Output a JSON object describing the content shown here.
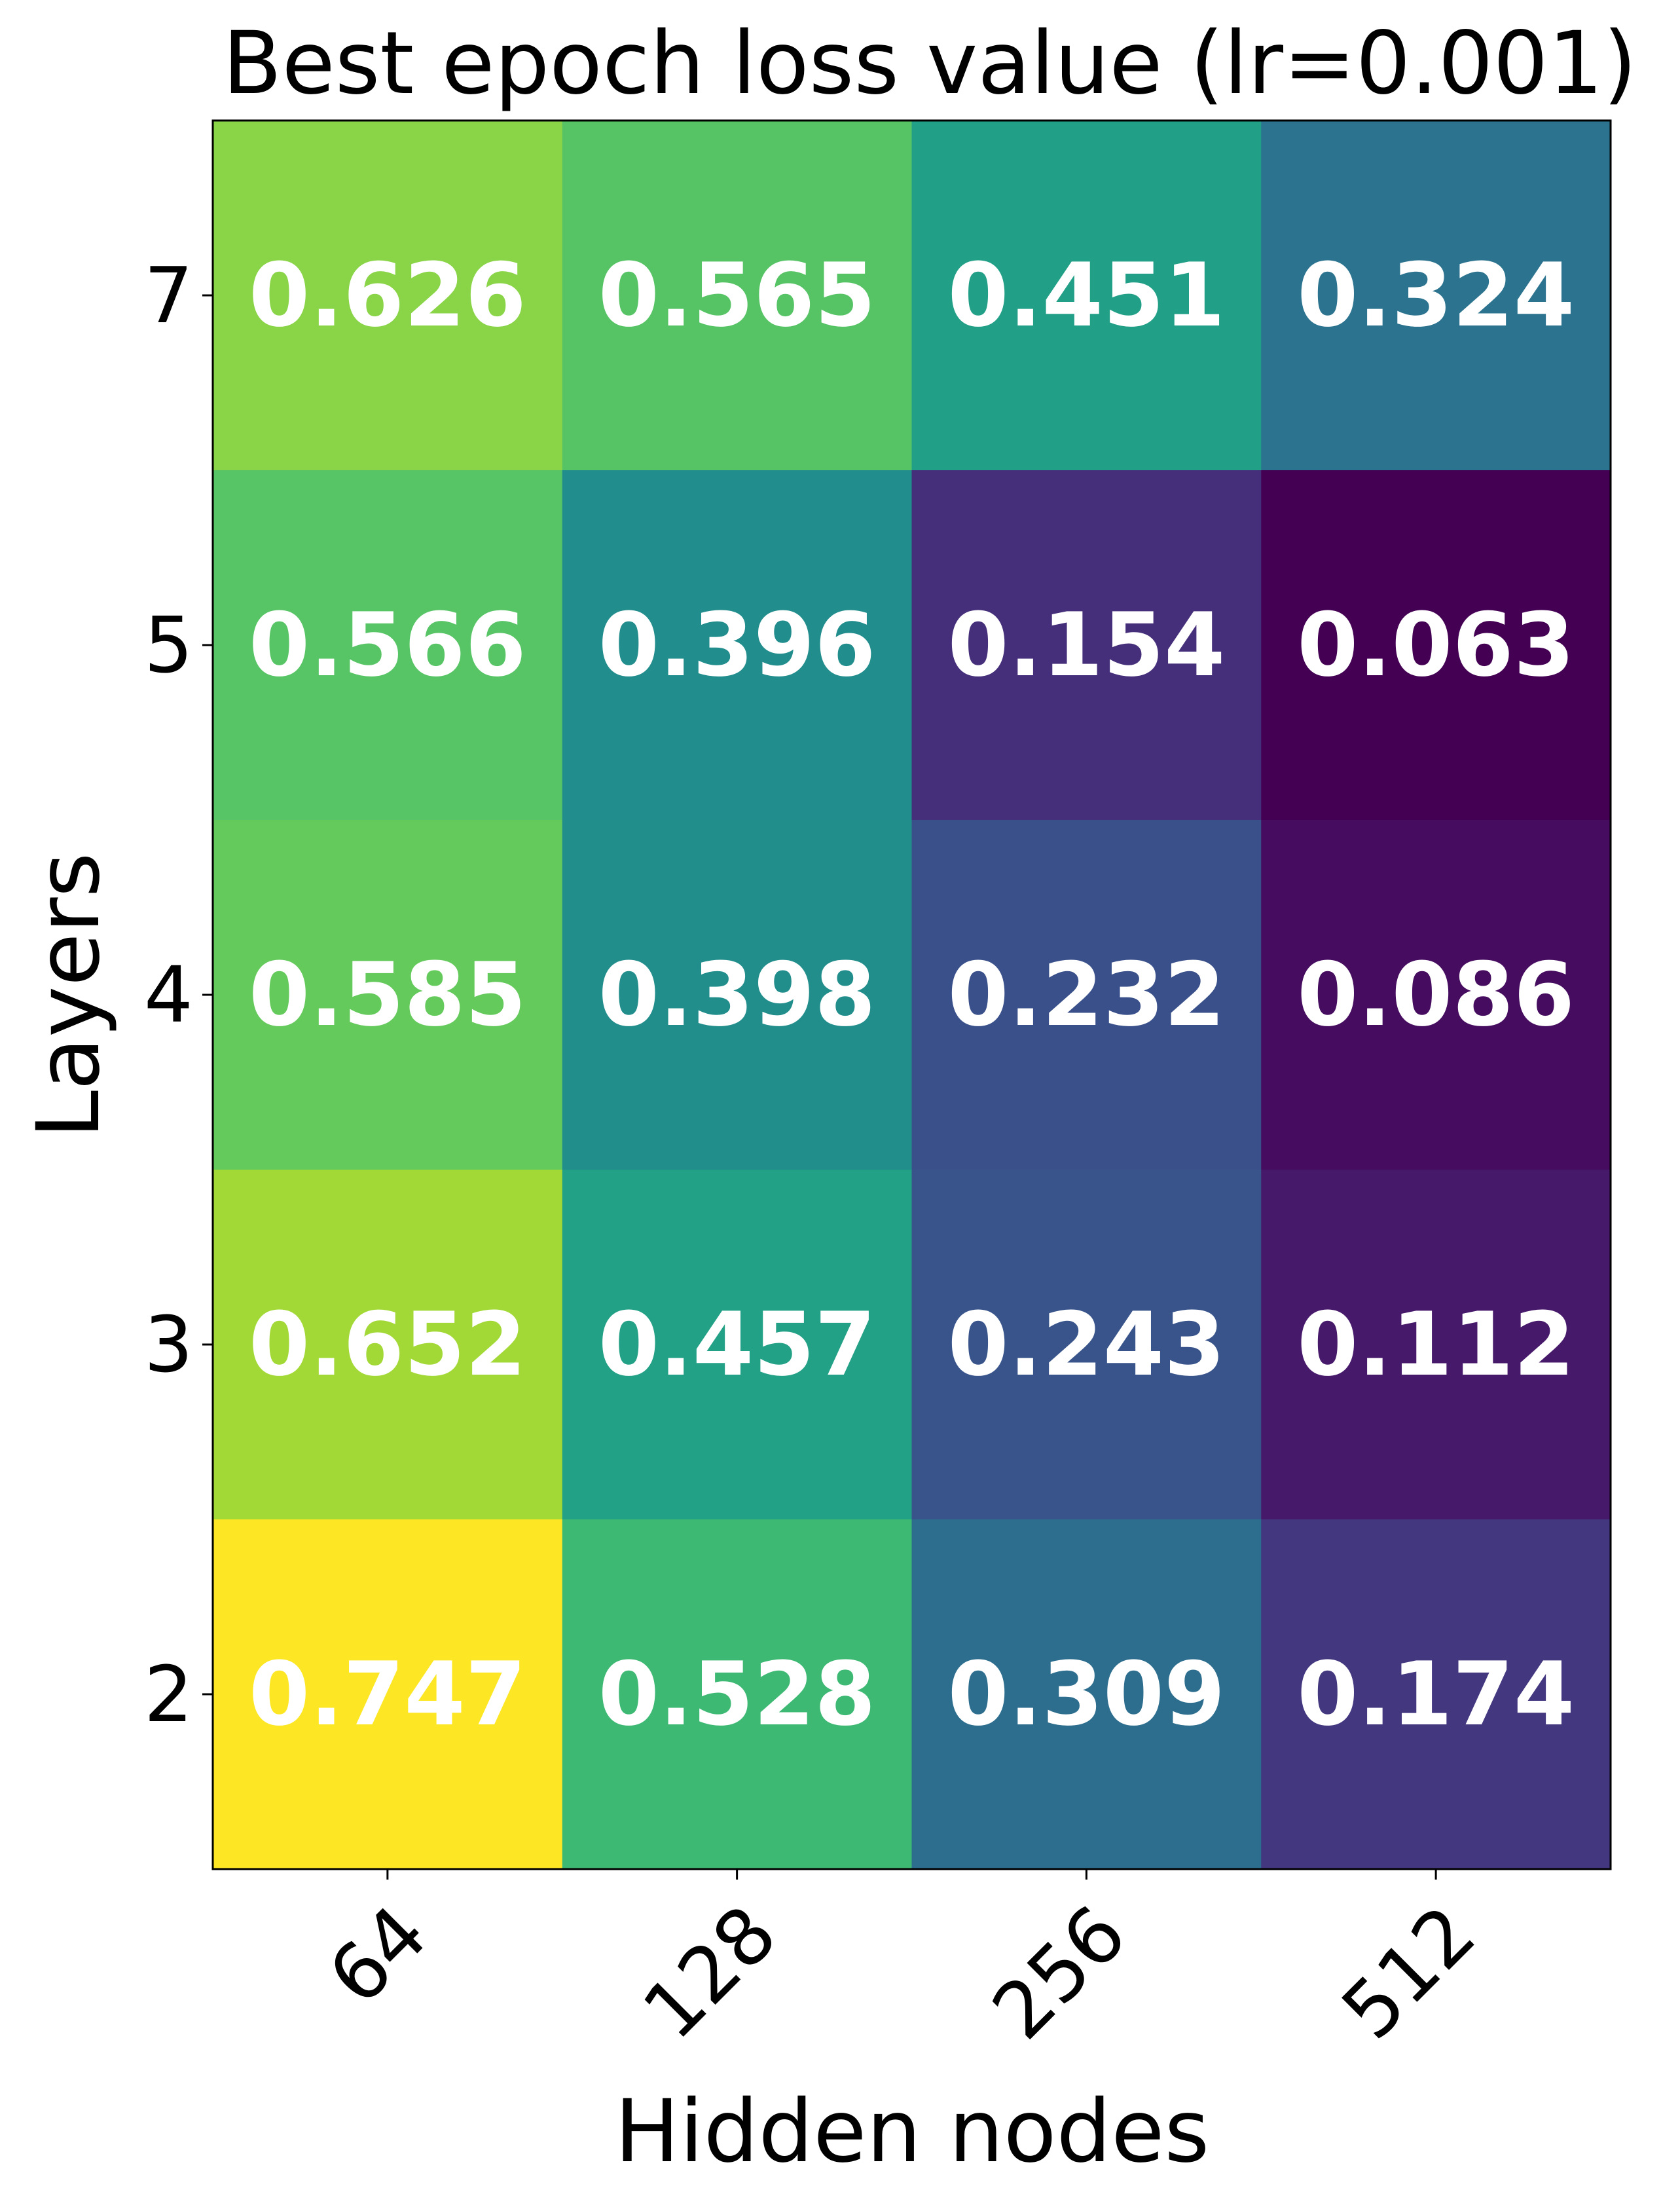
{
  "chart_data": {
    "type": "heatmap",
    "title": "Best epoch loss value (lr=0.001)",
    "xlabel": "Hidden nodes",
    "ylabel": "Layers",
    "x_categories": [
      "64",
      "128",
      "256",
      "512"
    ],
    "y_categories": [
      "7",
      "5",
      "4",
      "3",
      "2"
    ],
    "values": [
      [
        0.626,
        0.565,
        0.451,
        0.324
      ],
      [
        0.566,
        0.396,
        0.154,
        0.063
      ],
      [
        0.585,
        0.398,
        0.232,
        0.086
      ],
      [
        0.652,
        0.457,
        0.243,
        0.112
      ],
      [
        0.747,
        0.528,
        0.309,
        0.174
      ]
    ],
    "value_labels": [
      [
        "0.626",
        "0.565",
        "0.451",
        "0.324"
      ],
      [
        "0.566",
        "0.396",
        "0.154",
        "0.063"
      ],
      [
        "0.585",
        "0.398",
        "0.232",
        "0.086"
      ],
      [
        "0.652",
        "0.457",
        "0.243",
        "0.112"
      ],
      [
        "0.747",
        "0.528",
        "0.309",
        "0.174"
      ]
    ],
    "colormap": "viridis",
    "x_tick_rotation_deg": 45,
    "grid": false,
    "legend": "none"
  }
}
